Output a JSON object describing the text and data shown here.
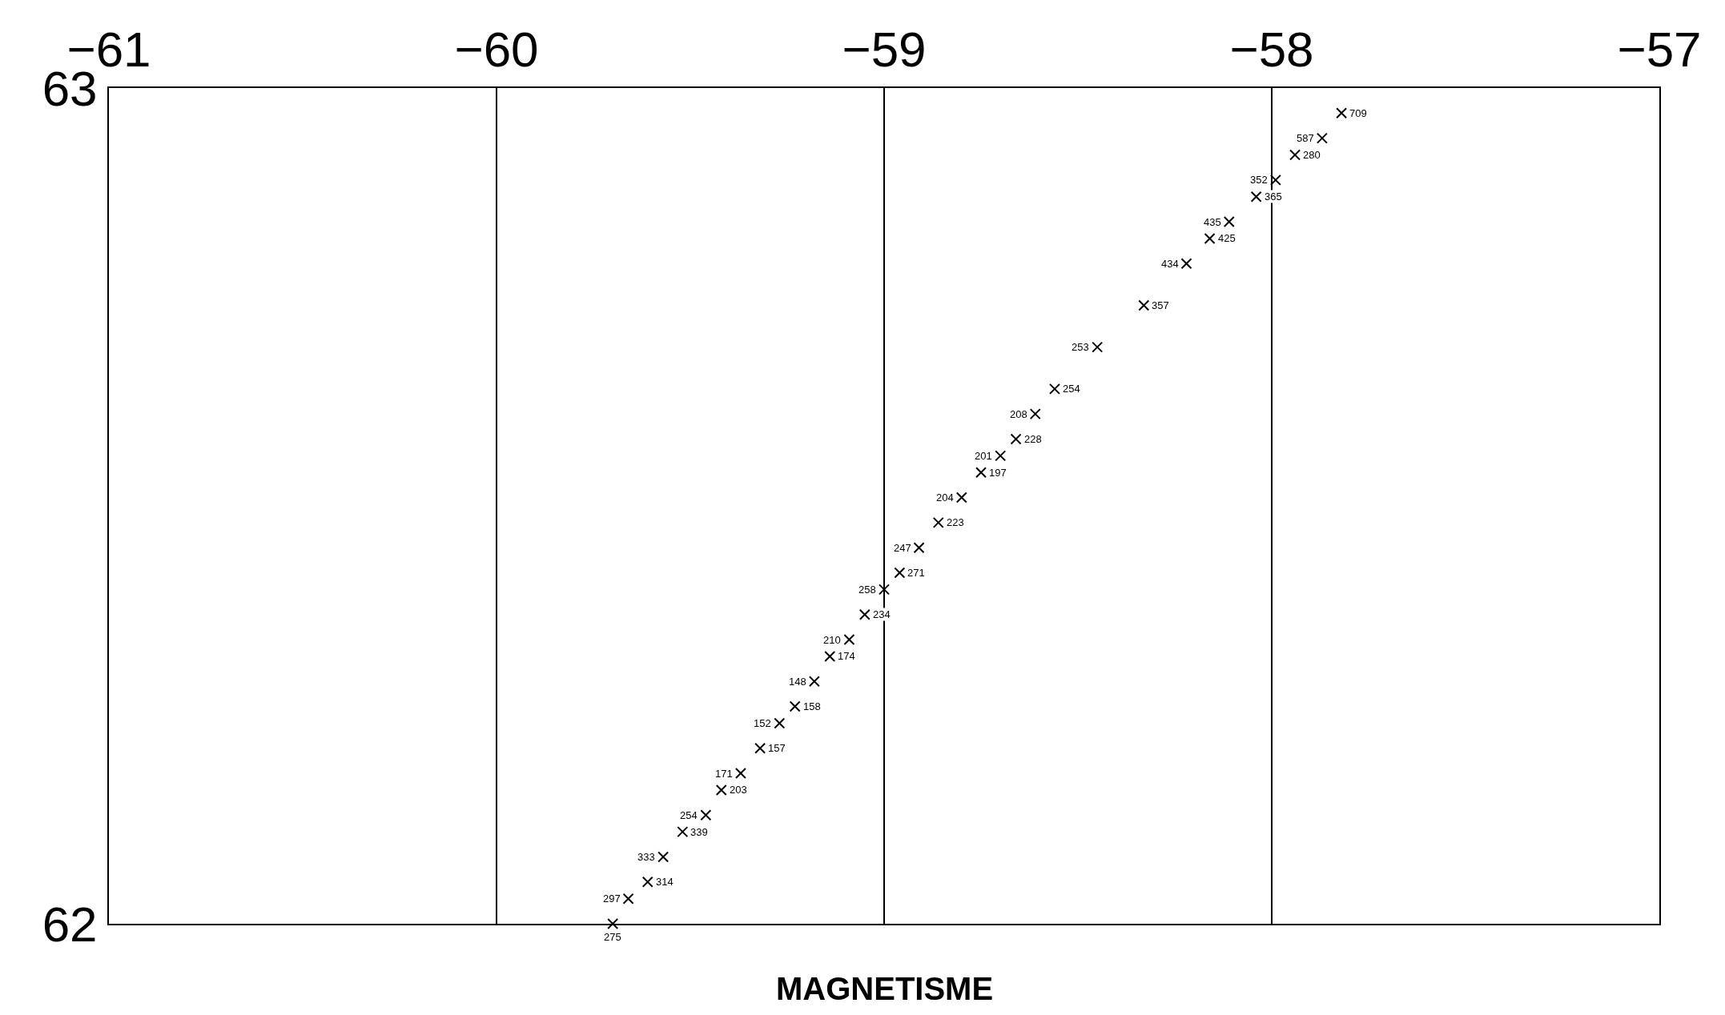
{
  "chart_data": {
    "type": "scatter",
    "xlabel": "MAGNETISME",
    "marker": "cross",
    "grid": "x",
    "xlim": [
      -61,
      -57
    ],
    "xticks": [
      -61,
      -60,
      -59,
      -58,
      -57
    ],
    "ylim": [
      62,
      63
    ],
    "yticks": [
      62,
      63
    ],
    "x": [
      -59.7,
      -59.66,
      -59.61,
      -59.57,
      -59.52,
      -59.46,
      -59.42,
      -59.37,
      -59.32,
      -59.27,
      -59.23,
      -59.18,
      -59.14,
      -59.09,
      -59.05,
      -59.0,
      -58.96,
      -58.91,
      -58.86,
      -58.8,
      -58.75,
      -58.7,
      -58.66,
      -58.61,
      -58.56,
      -58.45,
      -58.33,
      -58.22,
      -58.16,
      -58.11,
      -58.04,
      -57.99,
      -57.94,
      -57.87,
      -57.82
    ],
    "series": [
      {
        "color": "#000000",
        "values": [
          62.0,
          62.03,
          62.05,
          62.08,
          62.11,
          62.13,
          62.16,
          62.18,
          62.21,
          62.24,
          62.26,
          62.29,
          62.32,
          62.34,
          62.37,
          62.4,
          62.42,
          62.45,
          62.48,
          62.51,
          62.54,
          62.56,
          62.58,
          62.61,
          62.64,
          62.69,
          62.74,
          62.79,
          62.82,
          62.84,
          62.87,
          62.89,
          62.92,
          62.94,
          62.97
        ]
      }
    ],
    "annotations": [
      {
        "text": "275",
        "x": -59.7,
        "y": 62.0
      },
      {
        "text": "297",
        "x": -59.66,
        "y": 62.03
      },
      {
        "text": "314",
        "x": -59.61,
        "y": 62.05
      },
      {
        "text": "333",
        "x": -59.57,
        "y": 62.08
      },
      {
        "text": "339",
        "x": -59.52,
        "y": 62.11
      },
      {
        "text": "254",
        "x": -59.46,
        "y": 62.13
      },
      {
        "text": "203",
        "x": -59.42,
        "y": 62.16
      },
      {
        "text": "171",
        "x": -59.37,
        "y": 62.18
      },
      {
        "text": "157",
        "x": -59.32,
        "y": 62.21
      },
      {
        "text": "152",
        "x": -59.27,
        "y": 62.24
      },
      {
        "text": "158",
        "x": -59.23,
        "y": 62.26
      },
      {
        "text": "148",
        "x": -59.18,
        "y": 62.29
      },
      {
        "text": "174",
        "x": -59.14,
        "y": 62.32
      },
      {
        "text": "210",
        "x": -59.09,
        "y": 62.34
      },
      {
        "text": "234",
        "x": -59.05,
        "y": 62.37
      },
      {
        "text": "258",
        "x": -59.0,
        "y": 62.4
      },
      {
        "text": "271",
        "x": -58.96,
        "y": 62.42
      },
      {
        "text": "247",
        "x": -58.91,
        "y": 62.45
      },
      {
        "text": "223",
        "x": -58.86,
        "y": 62.48
      },
      {
        "text": "204",
        "x": -58.8,
        "y": 62.51
      },
      {
        "text": "197",
        "x": -58.75,
        "y": 62.54
      },
      {
        "text": "201",
        "x": -58.7,
        "y": 62.56
      },
      {
        "text": "228",
        "x": -58.66,
        "y": 62.58
      },
      {
        "text": "208",
        "x": -58.61,
        "y": 62.61
      },
      {
        "text": "254",
        "x": -58.56,
        "y": 62.64
      },
      {
        "text": "253",
        "x": -58.45,
        "y": 62.69
      },
      {
        "text": "357",
        "x": -58.33,
        "y": 62.74
      },
      {
        "text": "434",
        "x": -58.22,
        "y": 62.79
      },
      {
        "text": "425",
        "x": -58.16,
        "y": 62.82
      },
      {
        "text": "435",
        "x": -58.11,
        "y": 62.84
      },
      {
        "text": "365",
        "x": -58.04,
        "y": 62.87
      },
      {
        "text": "352",
        "x": -57.99,
        "y": 62.89
      },
      {
        "text": "280",
        "x": -57.94,
        "y": 62.92
      },
      {
        "text": "587",
        "x": -57.87,
        "y": 62.94
      },
      {
        "text": "709",
        "x": -57.82,
        "y": 62.97
      }
    ]
  }
}
